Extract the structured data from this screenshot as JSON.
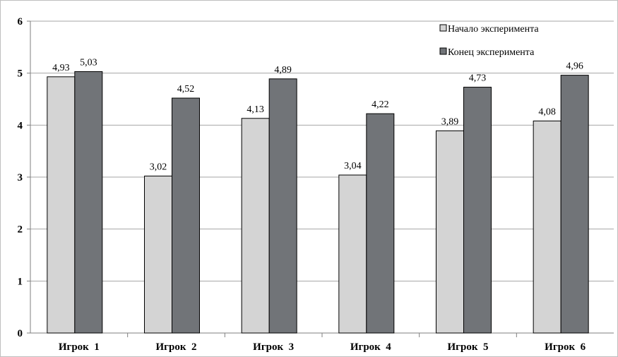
{
  "chart_data": {
    "type": "bar",
    "categories": [
      "Игрок  1",
      "Игрок  2",
      "Игрок  3",
      "Игрок  4",
      "Игрок  5",
      "Игрок  6"
    ],
    "series": [
      {
        "name": "Начало эксперимента",
        "values": [
          4.93,
          3.02,
          4.13,
          3.04,
          3.89,
          4.08
        ],
        "labels": [
          "4,93",
          "3,02",
          "4,13",
          "3,04",
          "3,89",
          "4,08"
        ],
        "color": "#d4d4d4"
      },
      {
        "name": "Конец эксперимента",
        "values": [
          5.03,
          4.52,
          4.89,
          4.22,
          4.73,
          4.96
        ],
        "labels": [
          "5,03",
          "4,52",
          "4,89",
          "4,22",
          "4,73",
          "4,96"
        ],
        "color": "#717478"
      }
    ],
    "yticks": [
      "0",
      "1",
      "2",
      "3",
      "4",
      "5",
      "6"
    ],
    "ylim": [
      0,
      6
    ],
    "grid": true,
    "legend_position": "top-right",
    "title": "",
    "xlabel": "",
    "ylabel": ""
  }
}
